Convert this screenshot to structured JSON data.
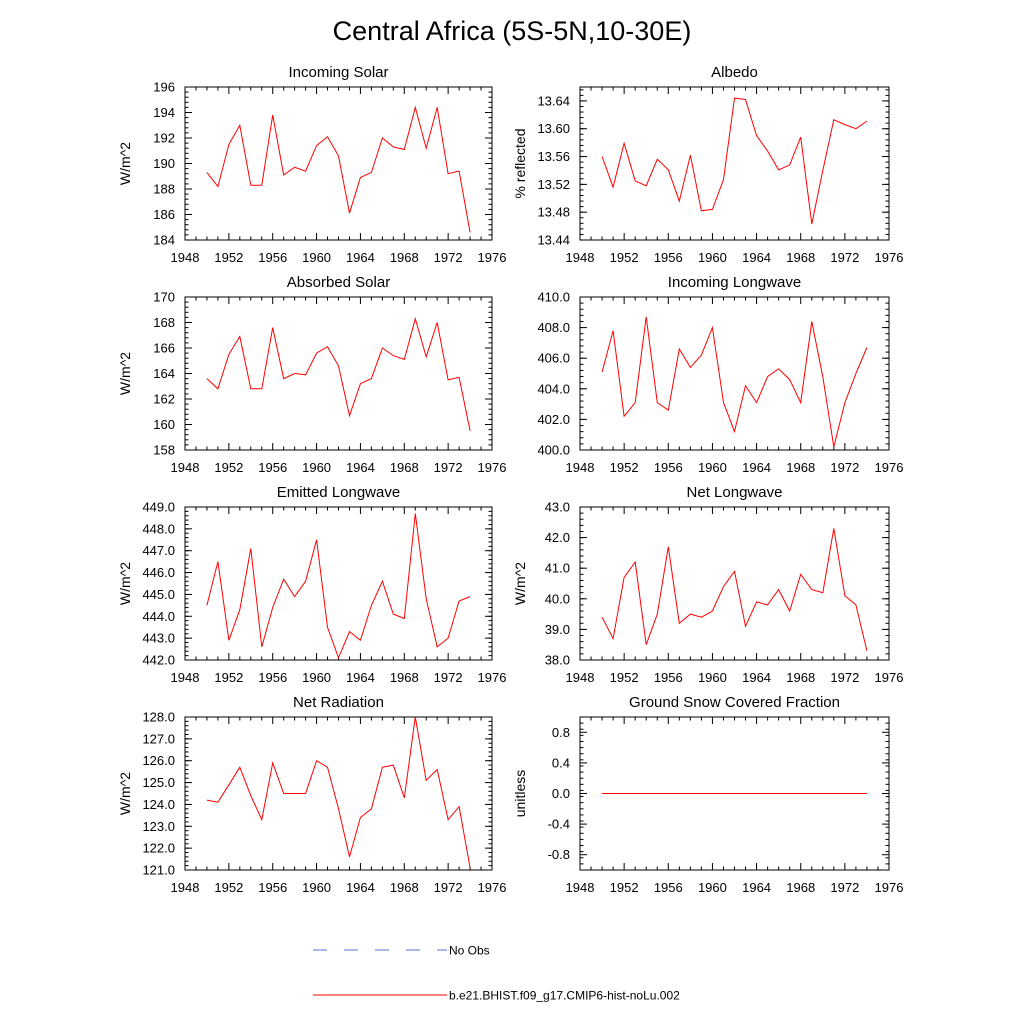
{
  "title": "Central Africa (5S-5N,10-30E)",
  "colors": {
    "model": "#ff0000",
    "obs": "#5a6fd6"
  },
  "legend": [
    {
      "label": "No Obs",
      "style": "dashed",
      "color": "#5a6fd6"
    },
    {
      "label": "b.e21.BHIST.f09_g17.CMIP6-hist-noLu.002",
      "style": "solid",
      "color": "#ff0000"
    }
  ],
  "chart_data": [
    {
      "type": "line",
      "title": "Incoming Solar",
      "ylabel": "W/m^2",
      "xlim": [
        1948,
        1976
      ],
      "xticks": [
        1948,
        1952,
        1956,
        1960,
        1964,
        1968,
        1972,
        1976
      ],
      "ylim": [
        184,
        196
      ],
      "yticks": [
        "184",
        "186",
        "188",
        "190",
        "192",
        "194",
        "196"
      ],
      "x": [
        1950,
        1951,
        1952,
        1953,
        1954,
        1955,
        1956,
        1957,
        1958,
        1959,
        1960,
        1961,
        1962,
        1963,
        1964,
        1965,
        1966,
        1967,
        1968,
        1969,
        1970,
        1971,
        1972,
        1973,
        1974
      ],
      "y": [
        189.3,
        188.2,
        191.5,
        193.0,
        188.3,
        188.3,
        193.8,
        189.1,
        189.7,
        189.4,
        191.4,
        192.1,
        190.6,
        186.1,
        188.9,
        189.3,
        192.0,
        191.3,
        191.1,
        194.4,
        191.2,
        194.4,
        189.2,
        189.4,
        184.6
      ]
    },
    {
      "type": "line",
      "title": "Albedo",
      "ylabel": "% reflected",
      "xlim": [
        1948,
        1976
      ],
      "xticks": [
        1948,
        1952,
        1956,
        1960,
        1964,
        1968,
        1972,
        1976
      ],
      "ylim": [
        13.44,
        13.66
      ],
      "yticks": [
        "13.44",
        "13.48",
        "13.52",
        "13.56",
        "13.60",
        "13.64"
      ],
      "x": [
        1950,
        1951,
        1952,
        1953,
        1954,
        1955,
        1956,
        1957,
        1958,
        1959,
        1960,
        1961,
        1962,
        1963,
        1964,
        1965,
        1966,
        1967,
        1968,
        1969,
        1970,
        1971,
        1972,
        1973,
        1974
      ],
      "y": [
        13.56,
        13.516,
        13.579,
        13.525,
        13.518,
        13.556,
        13.541,
        13.496,
        13.562,
        13.482,
        13.484,
        13.527,
        13.644,
        13.642,
        13.59,
        13.568,
        13.541,
        13.548,
        13.588,
        13.463,
        13.54,
        13.613,
        13.606,
        13.6,
        13.611
      ]
    },
    {
      "type": "line",
      "title": "Absorbed Solar",
      "ylabel": "W/m^2",
      "xlim": [
        1948,
        1976
      ],
      "xticks": [
        1948,
        1952,
        1956,
        1960,
        1964,
        1968,
        1972,
        1976
      ],
      "ylim": [
        158,
        170
      ],
      "yticks": [
        "158",
        "160",
        "162",
        "164",
        "166",
        "168",
        "170"
      ],
      "x": [
        1950,
        1951,
        1952,
        1953,
        1954,
        1955,
        1956,
        1957,
        1958,
        1959,
        1960,
        1961,
        1962,
        1963,
        1964,
        1965,
        1966,
        1967,
        1968,
        1969,
        1970,
        1971,
        1972,
        1973,
        1974
      ],
      "y": [
        163.6,
        162.8,
        165.5,
        166.9,
        162.8,
        162.8,
        167.6,
        163.6,
        164.0,
        163.9,
        165.6,
        166.1,
        164.6,
        160.7,
        163.2,
        163.6,
        166.0,
        165.4,
        165.1,
        168.3,
        165.3,
        168.0,
        163.5,
        163.7,
        159.5
      ]
    },
    {
      "type": "line",
      "title": "Incoming Longwave",
      "ylabel": "",
      "xlim": [
        1948,
        1976
      ],
      "xticks": [
        1948,
        1952,
        1956,
        1960,
        1964,
        1968,
        1972,
        1976
      ],
      "ylim": [
        400,
        410
      ],
      "yticks": [
        "400.0",
        "402.0",
        "404.0",
        "406.0",
        "408.0",
        "410.0"
      ],
      "x": [
        1950,
        1951,
        1952,
        1953,
        1954,
        1955,
        1956,
        1957,
        1958,
        1959,
        1960,
        1961,
        1962,
        1963,
        1964,
        1965,
        1966,
        1967,
        1968,
        1969,
        1970,
        1971,
        1972,
        1973,
        1974
      ],
      "y": [
        405.1,
        407.8,
        402.2,
        403.1,
        408.7,
        403.1,
        402.6,
        406.6,
        405.4,
        406.2,
        408.0,
        403.1,
        401.2,
        404.2,
        403.1,
        404.8,
        405.3,
        404.6,
        403.1,
        408.4,
        404.8,
        400.2,
        403.1,
        405.0,
        406.7
      ]
    },
    {
      "type": "line",
      "title": "Emitted Longwave",
      "ylabel": "W/m^2",
      "xlim": [
        1948,
        1976
      ],
      "xticks": [
        1948,
        1952,
        1956,
        1960,
        1964,
        1968,
        1972,
        1976
      ],
      "ylim": [
        442,
        449
      ],
      "yticks": [
        "442.0",
        "443.0",
        "444.0",
        "445.0",
        "446.0",
        "447.0",
        "448.0",
        "449.0"
      ],
      "x": [
        1950,
        1951,
        1952,
        1953,
        1954,
        1955,
        1956,
        1957,
        1958,
        1959,
        1960,
        1961,
        1962,
        1963,
        1964,
        1965,
        1966,
        1967,
        1968,
        1969,
        1970,
        1971,
        1972,
        1973,
        1974
      ],
      "y": [
        444.5,
        446.5,
        442.9,
        444.3,
        447.1,
        442.6,
        444.4,
        445.7,
        444.9,
        445.6,
        447.5,
        443.5,
        442.1,
        443.3,
        442.9,
        444.5,
        445.6,
        444.1,
        443.9,
        448.7,
        444.8,
        442.6,
        443.0,
        444.7,
        444.9
      ]
    },
    {
      "type": "line",
      "title": "Net Longwave",
      "ylabel": "W/m^2",
      "xlim": [
        1948,
        1976
      ],
      "xticks": [
        1948,
        1952,
        1956,
        1960,
        1964,
        1968,
        1972,
        1976
      ],
      "ylim": [
        38,
        43
      ],
      "yticks": [
        "38.0",
        "39.0",
        "40.0",
        "41.0",
        "42.0",
        "43.0"
      ],
      "x": [
        1950,
        1951,
        1952,
        1953,
        1954,
        1955,
        1956,
        1957,
        1958,
        1959,
        1960,
        1961,
        1962,
        1963,
        1964,
        1965,
        1966,
        1967,
        1968,
        1969,
        1970,
        1971,
        1972,
        1973,
        1974
      ],
      "y": [
        39.4,
        38.7,
        40.7,
        41.2,
        38.5,
        39.5,
        41.7,
        39.2,
        39.5,
        39.4,
        39.6,
        40.4,
        40.9,
        39.1,
        39.9,
        39.8,
        40.3,
        39.6,
        40.8,
        40.3,
        40.2,
        42.3,
        40.1,
        39.8,
        38.3
      ]
    },
    {
      "type": "line",
      "title": "Net Radiation",
      "ylabel": "W/m^2",
      "xlim": [
        1948,
        1976
      ],
      "xticks": [
        1948,
        1952,
        1956,
        1960,
        1964,
        1968,
        1972,
        1976
      ],
      "ylim": [
        121,
        128
      ],
      "yticks": [
        "121.0",
        "122.0",
        "123.0",
        "124.0",
        "125.0",
        "126.0",
        "127.0",
        "128.0"
      ],
      "x": [
        1950,
        1951,
        1952,
        1953,
        1954,
        1955,
        1956,
        1957,
        1958,
        1959,
        1960,
        1961,
        1962,
        1963,
        1964,
        1965,
        1966,
        1967,
        1968,
        1969,
        1970,
        1971,
        1972,
        1973,
        1974
      ],
      "y": [
        124.2,
        124.1,
        124.9,
        125.7,
        124.4,
        123.3,
        125.9,
        124.5,
        124.5,
        124.5,
        126.0,
        125.7,
        123.8,
        121.6,
        123.4,
        123.8,
        125.7,
        125.8,
        124.3,
        128.0,
        125.1,
        125.6,
        123.3,
        123.9,
        121.1
      ]
    },
    {
      "type": "line",
      "title": "Ground Snow Covered Fraction",
      "ylabel": "unitless",
      "xlim": [
        1948,
        1976
      ],
      "xticks": [
        1948,
        1952,
        1956,
        1960,
        1964,
        1968,
        1972,
        1976
      ],
      "ylim": [
        -1.0,
        1.0
      ],
      "yticks": [
        "-0.8",
        "-0.4",
        "0.0",
        "0.4",
        "0.8"
      ],
      "yticks_values": [
        -0.8,
        -0.4,
        0.0,
        0.4,
        0.8
      ],
      "x": [
        1950,
        1974
      ],
      "y": [
        0.0,
        0.0
      ]
    }
  ]
}
